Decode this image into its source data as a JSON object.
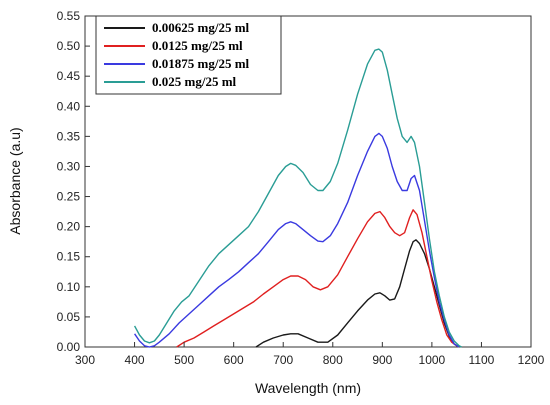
{
  "chart_data": {
    "type": "line",
    "title": "",
    "xlabel": "Wavelength (nm)",
    "ylabel": "Absorbance (a.u)",
    "xlim": [
      300,
      1200
    ],
    "ylim": [
      0,
      0.55
    ],
    "xticks": [
      "300",
      "400",
      "500",
      "600",
      "700",
      "800",
      "900",
      "1000",
      "1100",
      "1200"
    ],
    "yticks": [
      "0.00",
      "0.05",
      "0.10",
      "0.15",
      "0.20",
      "0.25",
      "0.30",
      "0.35",
      "0.40",
      "0.45",
      "0.50",
      "0.55"
    ],
    "grid": false,
    "legend_position": "top-left",
    "series": [
      {
        "name": "0.00625 mg/25 ml",
        "color": "#1a1a1a",
        "x": [
          645,
          660,
          680,
          700,
          715,
          730,
          750,
          770,
          790,
          810,
          830,
          850,
          870,
          885,
          895,
          905,
          915,
          925,
          935,
          945,
          955,
          962,
          968,
          975,
          985,
          995,
          1005,
          1015,
          1025,
          1035,
          1045,
          1055
        ],
        "y": [
          0.0,
          0.008,
          0.015,
          0.02,
          0.022,
          0.022,
          0.015,
          0.008,
          0.008,
          0.02,
          0.04,
          0.06,
          0.078,
          0.088,
          0.09,
          0.085,
          0.078,
          0.08,
          0.1,
          0.13,
          0.16,
          0.175,
          0.178,
          0.172,
          0.155,
          0.13,
          0.1,
          0.07,
          0.04,
          0.018,
          0.005,
          0.0
        ]
      },
      {
        "name": "0.0125 mg/25 ml",
        "color": "#e02020",
        "x": [
          485,
          500,
          520,
          540,
          560,
          580,
          600,
          620,
          640,
          660,
          680,
          700,
          715,
          730,
          745,
          760,
          775,
          790,
          810,
          830,
          850,
          870,
          885,
          895,
          905,
          915,
          925,
          935,
          945,
          955,
          962,
          970,
          980,
          990,
          1000,
          1010,
          1020,
          1030,
          1040,
          1050,
          1055
        ],
        "y": [
          0.0,
          0.008,
          0.015,
          0.025,
          0.035,
          0.045,
          0.055,
          0.065,
          0.075,
          0.088,
          0.1,
          0.112,
          0.118,
          0.118,
          0.112,
          0.1,
          0.095,
          0.1,
          0.12,
          0.15,
          0.18,
          0.208,
          0.222,
          0.225,
          0.215,
          0.2,
          0.19,
          0.185,
          0.19,
          0.215,
          0.228,
          0.22,
          0.19,
          0.15,
          0.11,
          0.075,
          0.045,
          0.02,
          0.008,
          0.002,
          0.0
        ]
      },
      {
        "name": "0.01875 mg/25 ml",
        "color": "#3a3ae0",
        "x": [
          400,
          410,
          420,
          430,
          440,
          450,
          470,
          490,
          510,
          530,
          550,
          570,
          590,
          610,
          630,
          650,
          670,
          690,
          705,
          715,
          725,
          740,
          755,
          770,
          780,
          795,
          810,
          830,
          850,
          870,
          885,
          893,
          900,
          910,
          920,
          930,
          940,
          950,
          958,
          965,
          975,
          985,
          995,
          1005,
          1015,
          1025,
          1035,
          1045,
          1055
        ],
        "y": [
          0.022,
          0.01,
          0.002,
          0.0,
          0.002,
          0.008,
          0.022,
          0.04,
          0.055,
          0.07,
          0.085,
          0.1,
          0.112,
          0.125,
          0.14,
          0.155,
          0.175,
          0.195,
          0.205,
          0.208,
          0.205,
          0.195,
          0.185,
          0.176,
          0.175,
          0.185,
          0.205,
          0.24,
          0.285,
          0.325,
          0.35,
          0.355,
          0.35,
          0.33,
          0.3,
          0.275,
          0.26,
          0.26,
          0.28,
          0.285,
          0.26,
          0.21,
          0.16,
          0.115,
          0.075,
          0.045,
          0.02,
          0.005,
          0.0
        ]
      },
      {
        "name": "0.025 mg/25 ml",
        "color": "#2a9d95",
        "x": [
          400,
          410,
          420,
          430,
          440,
          450,
          465,
          480,
          495,
          510,
          530,
          550,
          570,
          590,
          610,
          630,
          650,
          670,
          690,
          705,
          715,
          725,
          740,
          755,
          770,
          780,
          795,
          810,
          830,
          850,
          870,
          885,
          893,
          900,
          910,
          920,
          930,
          940,
          950,
          958,
          965,
          975,
          985,
          995,
          1005,
          1015,
          1025,
          1035,
          1045,
          1055,
          1060
        ],
        "y": [
          0.035,
          0.02,
          0.01,
          0.007,
          0.01,
          0.02,
          0.04,
          0.06,
          0.075,
          0.085,
          0.11,
          0.135,
          0.155,
          0.17,
          0.185,
          0.2,
          0.225,
          0.255,
          0.285,
          0.3,
          0.305,
          0.302,
          0.29,
          0.27,
          0.26,
          0.26,
          0.275,
          0.305,
          0.36,
          0.42,
          0.47,
          0.493,
          0.495,
          0.49,
          0.46,
          0.42,
          0.38,
          0.35,
          0.34,
          0.35,
          0.34,
          0.3,
          0.24,
          0.18,
          0.125,
          0.085,
          0.05,
          0.025,
          0.01,
          0.002,
          0.0
        ]
      }
    ]
  }
}
